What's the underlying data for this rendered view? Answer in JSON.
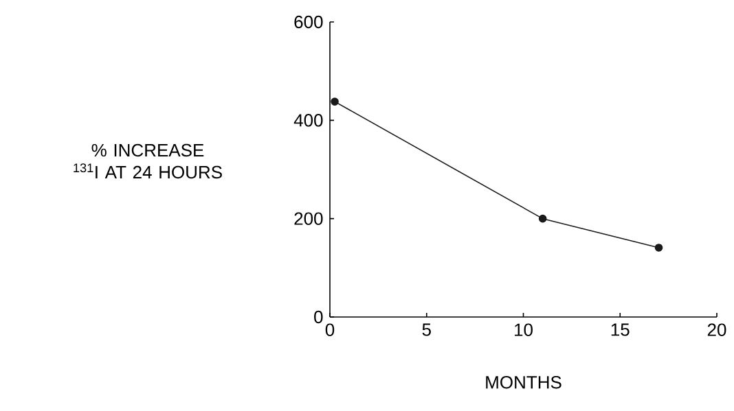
{
  "chart_data": {
    "type": "line",
    "xlabel": "MONTHS",
    "ylabel": "% INCREASE $^{131}$I AT 24 HOURS",
    "x": [
      0.25,
      11,
      17
    ],
    "series": [
      {
        "color": "#1a1a1a",
        "values": [
          438,
          200,
          141
        ]
      }
    ],
    "xlim": [
      0,
      20
    ],
    "xticks": [
      0,
      5,
      10,
      15,
      20
    ],
    "ylim": [
      0,
      600
    ],
    "yticks": [
      0,
      200,
      400,
      600
    ],
    "grid": false,
    "marker": "circle",
    "line_style": "solid"
  }
}
